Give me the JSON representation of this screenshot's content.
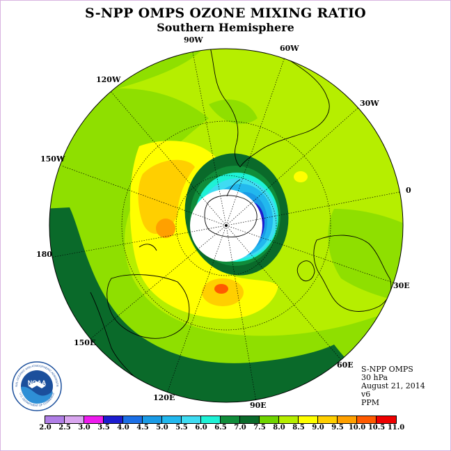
{
  "title": "S-NPP OMPS OZONE MIXING RATIO",
  "subtitle": "Southern Hemisphere",
  "longitude_labels": [
    "90W",
    "60W",
    "30W",
    "0",
    "30E",
    "60E",
    "90E",
    "120E",
    "150E",
    "180",
    "150W",
    "120W"
  ],
  "info": {
    "instrument": "S-NPP OMPS",
    "pressure_level": "30 hPa",
    "date": "August 21, 2014",
    "version": "v6",
    "units": "PPM"
  },
  "colorbar": {
    "ticks": [
      "2.0",
      "2.5",
      "3.0",
      "3.5",
      "4.0",
      "4.5",
      "5.0",
      "5.5",
      "6.0",
      "6.5",
      "7.0",
      "7.5",
      "8.0",
      "8.5",
      "9.0",
      "9.5",
      "10.0",
      "10.5",
      "11.0"
    ],
    "colors": [
      "#b07ee6",
      "#d9a6ef",
      "#ee1bee",
      "#1c1ccf",
      "#1b6fe6",
      "#1a9be6",
      "#22b8ee",
      "#3fdcf2",
      "#1ef2d6",
      "#108c3a",
      "#0a6a2a",
      "#6fd400",
      "#b6ee00",
      "#ffff00",
      "#ffcf00",
      "#ffa000",
      "#ff5a00",
      "#ee0000",
      "#8b4a2b"
    ]
  },
  "logo": {
    "text": "NOAA",
    "ring_text": "NATIONAL OCEANIC AND ATMOSPHERIC ADMINISTRATION",
    "ring_text_bottom": "U.S. DEPARTMENT OF COMMERCE"
  }
}
